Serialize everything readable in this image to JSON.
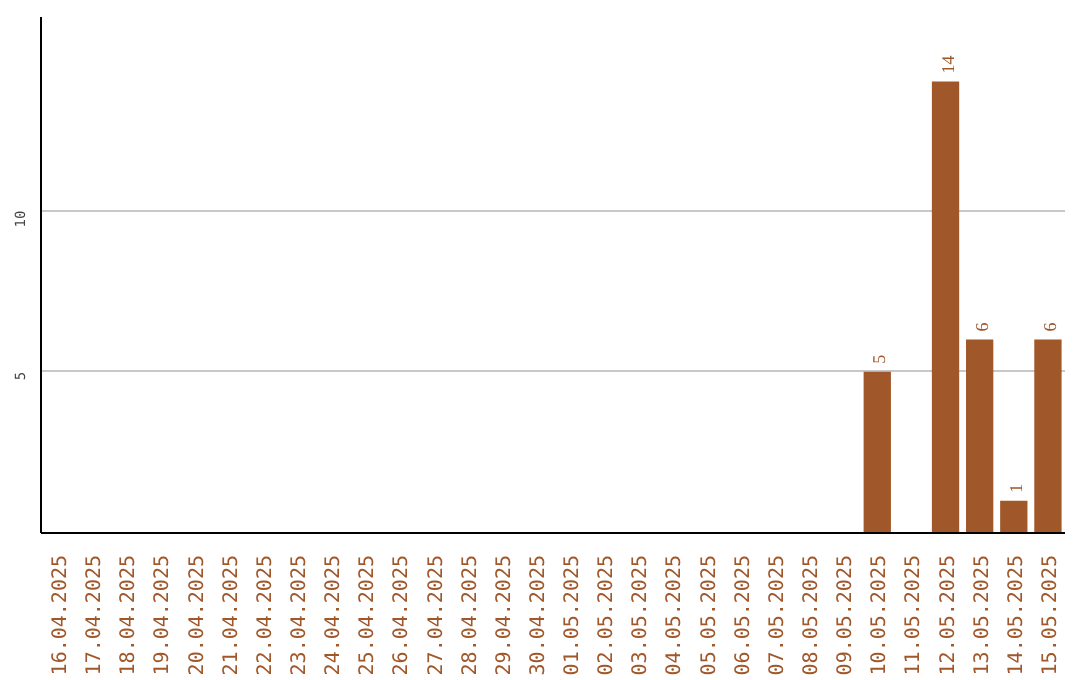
{
  "chart_data": {
    "type": "bar",
    "categories": [
      "16.04.2025",
      "17.04.2025",
      "18.04.2025",
      "19.04.2025",
      "20.04.2025",
      "21.04.2025",
      "22.04.2025",
      "23.04.2025",
      "24.04.2025",
      "25.04.2025",
      "26.04.2025",
      "27.04.2025",
      "28.04.2025",
      "29.04.2025",
      "30.04.2025",
      "01.05.2025",
      "02.05.2025",
      "03.05.2025",
      "04.05.2025",
      "05.05.2025",
      "06.05.2025",
      "07.05.2025",
      "08.05.2025",
      "09.05.2025",
      "10.05.2025",
      "11.05.2025",
      "12.05.2025",
      "13.05.2025",
      "14.05.2025",
      "15.05.2025"
    ],
    "values": [
      0,
      0,
      0,
      0,
      0,
      0,
      0,
      0,
      0,
      0,
      0,
      0,
      0,
      0,
      0,
      0,
      0,
      0,
      0,
      0,
      0,
      0,
      0,
      0,
      5,
      0,
      14,
      6,
      1,
      6
    ],
    "value_labels": [
      null,
      null,
      null,
      null,
      null,
      null,
      null,
      null,
      null,
      null,
      null,
      null,
      null,
      null,
      null,
      null,
      null,
      null,
      null,
      null,
      null,
      null,
      null,
      null,
      "5",
      null,
      "14",
      "6",
      "1",
      "6"
    ],
    "color": "#a0572a",
    "ylim": [
      0,
      16
    ],
    "yticks": [
      5,
      10
    ],
    "grid": "y"
  }
}
